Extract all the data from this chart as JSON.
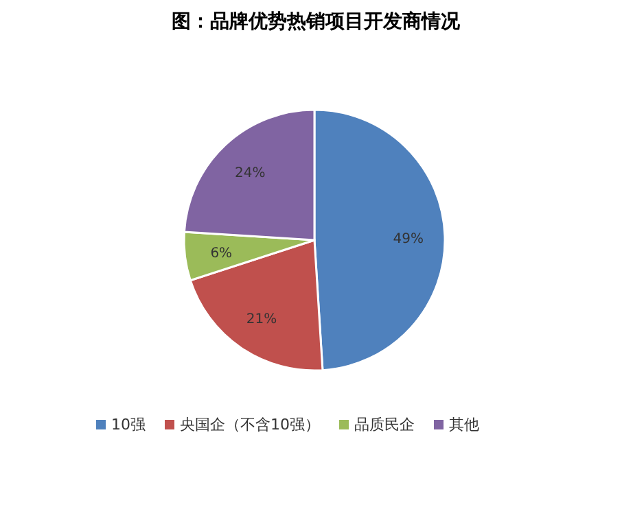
{
  "chart_data": {
    "type": "pie",
    "title": "图：品牌优势热销项目开发商情况",
    "categories": [
      "10强",
      "央国企（不含10强）",
      "品质民企",
      "其他"
    ],
    "values": [
      49,
      21,
      6,
      24
    ],
    "colors": [
      "#4f81bd",
      "#c0504d",
      "#9bbb59",
      "#8064a2"
    ],
    "value_labels": [
      "49%",
      "21%",
      "6%",
      "24%"
    ],
    "legend": "bottom"
  }
}
